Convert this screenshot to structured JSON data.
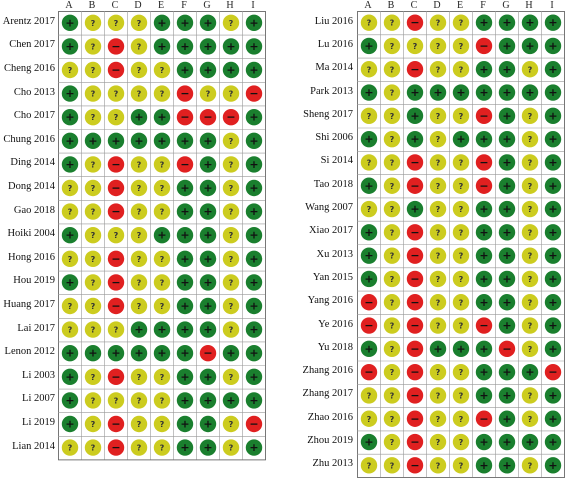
{
  "columns": [
    "A",
    "B",
    "C",
    "D",
    "E",
    "F",
    "G",
    "H",
    "I"
  ],
  "legend": {
    "+": {
      "symbol": "+",
      "color": "#1a7f2e"
    },
    "?": {
      "symbol": "?",
      "color": "#cccc1f"
    },
    "-": {
      "symbol": "−",
      "color": "#e02020"
    }
  },
  "panels": [
    {
      "studies": [
        {
          "name": "Arentz 2017",
          "marks": [
            "+",
            "?",
            "?",
            "?",
            "+",
            "+",
            "+",
            "?",
            "+"
          ]
        },
        {
          "name": "Chen 2017",
          "marks": [
            "+",
            "?",
            "-",
            "?",
            "+",
            "+",
            "+",
            "+",
            "+"
          ]
        },
        {
          "name": "Cheng 2016",
          "marks": [
            "?",
            "?",
            "-",
            "?",
            "?",
            "+",
            "+",
            "+",
            "+"
          ]
        },
        {
          "name": "Cho 2013",
          "marks": [
            "+",
            "?",
            "?",
            "?",
            "?",
            "-",
            "?",
            "?",
            "-"
          ]
        },
        {
          "name": "Cho 2017",
          "marks": [
            "+",
            "?",
            "?",
            "+",
            "+",
            "-",
            "-",
            "-",
            "+"
          ]
        },
        {
          "name": "Chung 2016",
          "marks": [
            "+",
            "+",
            "+",
            "+",
            "+",
            "+",
            "+",
            "?",
            "+"
          ]
        },
        {
          "name": "Ding 2014",
          "marks": [
            "+",
            "?",
            "-",
            "?",
            "?",
            "-",
            "+",
            "?",
            "+"
          ]
        },
        {
          "name": "Dong 2014",
          "marks": [
            "?",
            "?",
            "-",
            "?",
            "?",
            "+",
            "+",
            "?",
            "+"
          ]
        },
        {
          "name": "Gao 2018",
          "marks": [
            "?",
            "?",
            "-",
            "?",
            "?",
            "+",
            "+",
            "?",
            "+"
          ]
        },
        {
          "name": "Hoiki 2004",
          "marks": [
            "+",
            "?",
            "?",
            "?",
            "+",
            "+",
            "+",
            "?",
            "+"
          ]
        },
        {
          "name": "Hong 2016",
          "marks": [
            "?",
            "?",
            "-",
            "?",
            "?",
            "+",
            "+",
            "?",
            "+"
          ]
        },
        {
          "name": "Hou 2019",
          "marks": [
            "+",
            "?",
            "-",
            "?",
            "?",
            "+",
            "+",
            "?",
            "+"
          ]
        },
        {
          "name": "Huang 2017",
          "marks": [
            "?",
            "?",
            "-",
            "?",
            "?",
            "+",
            "+",
            "?",
            "+"
          ]
        },
        {
          "name": "Lai 2017",
          "marks": [
            "?",
            "?",
            "?",
            "+",
            "+",
            "+",
            "+",
            "?",
            "+"
          ]
        },
        {
          "name": "Lenon 2012",
          "marks": [
            "+",
            "+",
            "+",
            "+",
            "+",
            "+",
            "-",
            "+",
            "+"
          ]
        },
        {
          "name": "Li 2003",
          "marks": [
            "+",
            "?",
            "-",
            "?",
            "?",
            "+",
            "+",
            "?",
            "+"
          ]
        },
        {
          "name": "Li 2007",
          "marks": [
            "+",
            "?",
            "?",
            "?",
            "?",
            "+",
            "+",
            "+",
            "+"
          ]
        },
        {
          "name": "Li 2019",
          "marks": [
            "+",
            "?",
            "-",
            "?",
            "?",
            "+",
            "+",
            "?",
            "-"
          ]
        },
        {
          "name": "Lian 2014",
          "marks": [
            "?",
            "?",
            "-",
            "?",
            "?",
            "+",
            "+",
            "?",
            "+"
          ]
        }
      ]
    },
    {
      "studies": [
        {
          "name": "Liu 2016",
          "marks": [
            "?",
            "?",
            "-",
            "?",
            "?",
            "+",
            "+",
            "+",
            "+"
          ]
        },
        {
          "name": "Lu 2016",
          "marks": [
            "+",
            "?",
            "?",
            "?",
            "?",
            "-",
            "+",
            "+",
            "+"
          ]
        },
        {
          "name": "Ma 2014",
          "marks": [
            "?",
            "?",
            "-",
            "?",
            "?",
            "+",
            "+",
            "?",
            "+"
          ]
        },
        {
          "name": "Park 2013",
          "marks": [
            "+",
            "?",
            "+",
            "+",
            "+",
            "+",
            "+",
            "+",
            "+"
          ]
        },
        {
          "name": "Sheng 2017",
          "marks": [
            "?",
            "?",
            "+",
            "?",
            "?",
            "-",
            "+",
            "?",
            "+"
          ]
        },
        {
          "name": "Shi 2006",
          "marks": [
            "+",
            "?",
            "+",
            "?",
            "+",
            "+",
            "+",
            "?",
            "+"
          ]
        },
        {
          "name": "Si 2014",
          "marks": [
            "?",
            "?",
            "-",
            "?",
            "?",
            "-",
            "+",
            "?",
            "+"
          ]
        },
        {
          "name": "Tao 2018",
          "marks": [
            "+",
            "?",
            "-",
            "?",
            "?",
            "-",
            "+",
            "?",
            "+"
          ]
        },
        {
          "name": "Wang 2007",
          "marks": [
            "?",
            "?",
            "+",
            "?",
            "?",
            "+",
            "+",
            "?",
            "+"
          ]
        },
        {
          "name": "Xiao 2017",
          "marks": [
            "+",
            "?",
            "-",
            "?",
            "?",
            "+",
            "+",
            "?",
            "+"
          ]
        },
        {
          "name": "Xu 2013",
          "marks": [
            "+",
            "?",
            "-",
            "?",
            "?",
            "+",
            "+",
            "?",
            "+"
          ]
        },
        {
          "name": "Yan 2015",
          "marks": [
            "+",
            "?",
            "-",
            "?",
            "?",
            "+",
            "+",
            "?",
            "+"
          ]
        },
        {
          "name": "Yang 2016",
          "marks": [
            "-",
            "?",
            "-",
            "?",
            "?",
            "+",
            "+",
            "?",
            "+"
          ]
        },
        {
          "name": "Ye 2016",
          "marks": [
            "-",
            "?",
            "-",
            "?",
            "?",
            "-",
            "+",
            "?",
            "+"
          ]
        },
        {
          "name": "Yu 2018",
          "marks": [
            "+",
            "?",
            "-",
            "+",
            "+",
            "+",
            "-",
            "?",
            "+"
          ]
        },
        {
          "name": "Zhang 2016",
          "marks": [
            "-",
            "?",
            "-",
            "?",
            "?",
            "+",
            "+",
            "+",
            "-"
          ]
        },
        {
          "name": "Zhang 2017",
          "marks": [
            "?",
            "?",
            "-",
            "?",
            "?",
            "+",
            "+",
            "?",
            "+"
          ]
        },
        {
          "name": "Zhao 2016",
          "marks": [
            "?",
            "?",
            "-",
            "?",
            "?",
            "-",
            "+",
            "?",
            "+"
          ]
        },
        {
          "name": "Zhou 2019",
          "marks": [
            "+",
            "?",
            "-",
            "?",
            "?",
            "+",
            "+",
            "+",
            "+"
          ]
        },
        {
          "name": "Zhu 2013",
          "marks": [
            "?",
            "?",
            "-",
            "?",
            "?",
            "+",
            "+",
            "?",
            "+"
          ]
        }
      ]
    }
  ]
}
